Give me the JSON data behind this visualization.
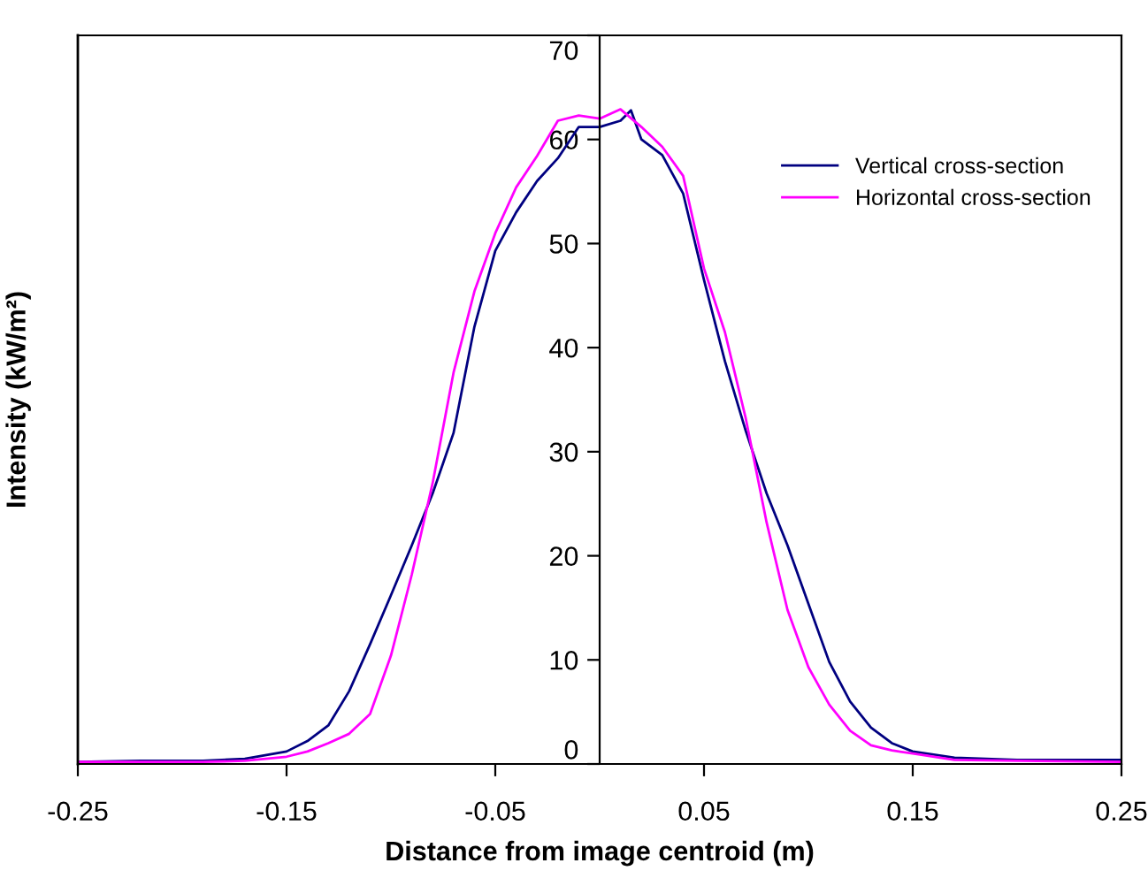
{
  "chart_data": {
    "type": "line",
    "xlabel": "Distance from image centroid (m)",
    "ylabel": "Intensity (kW/m²)",
    "xlim": [
      -0.25,
      0.25
    ],
    "ylim": [
      0,
      70
    ],
    "xticks": [
      -0.25,
      -0.15,
      -0.05,
      0.05,
      0.15,
      0.25
    ],
    "yticks": [
      0,
      10,
      20,
      30,
      40,
      50,
      60,
      70
    ],
    "grid": false,
    "legend": "top right",
    "marker": "none",
    "line_style": "solid",
    "series": [
      {
        "name": "Vertical cross-section",
        "color": "#000080",
        "x": [
          -0.25,
          -0.22,
          -0.19,
          -0.17,
          -0.15,
          -0.14,
          -0.13,
          -0.12,
          -0.11,
          -0.1,
          -0.09,
          -0.08,
          -0.07,
          -0.06,
          -0.05,
          -0.04,
          -0.03,
          -0.02,
          -0.01,
          0,
          0.01,
          0.015,
          0.02,
          0.03,
          0.04,
          0.05,
          0.06,
          0.07,
          0.08,
          0.09,
          0.1,
          0.11,
          0.12,
          0.13,
          0.14,
          0.15,
          0.17,
          0.2,
          0.25
        ],
        "values": [
          0.2,
          0.3,
          0.3,
          0.5,
          1.2,
          2.2,
          3.7,
          7.0,
          11.5,
          16.2,
          21,
          26,
          31.8,
          42,
          49.3,
          53,
          56,
          58.2,
          61.2,
          61.2,
          61.8,
          62.8,
          60,
          58.5,
          54.8,
          46.5,
          38.7,
          32,
          26,
          21,
          15.4,
          9.8,
          6,
          3.5,
          2,
          1.2,
          0.6,
          0.4,
          0.4
        ]
      },
      {
        "name": "Horizontal cross-section",
        "color": "#ff00ff",
        "x": [
          -0.25,
          -0.22,
          -0.19,
          -0.17,
          -0.15,
          -0.14,
          -0.13,
          -0.12,
          -0.11,
          -0.1,
          -0.09,
          -0.08,
          -0.07,
          -0.06,
          -0.05,
          -0.04,
          -0.03,
          -0.02,
          -0.01,
          0,
          0.01,
          0.02,
          0.03,
          0.04,
          0.05,
          0.06,
          0.07,
          0.08,
          0.09,
          0.1,
          0.11,
          0.12,
          0.13,
          0.14,
          0.15,
          0.17,
          0.2,
          0.25
        ],
        "values": [
          0.2,
          0.2,
          0.2,
          0.3,
          0.7,
          1.2,
          2,
          2.9,
          4.8,
          10.4,
          18.2,
          27,
          37.6,
          45.4,
          51,
          55.4,
          58.4,
          61.8,
          62.3,
          62,
          62.9,
          61.2,
          59.3,
          56.5,
          47.6,
          41.5,
          33.2,
          23.2,
          14.8,
          9.3,
          5.7,
          3.2,
          1.8,
          1.3,
          1.0,
          0.4,
          0.3,
          0.2
        ]
      }
    ]
  }
}
